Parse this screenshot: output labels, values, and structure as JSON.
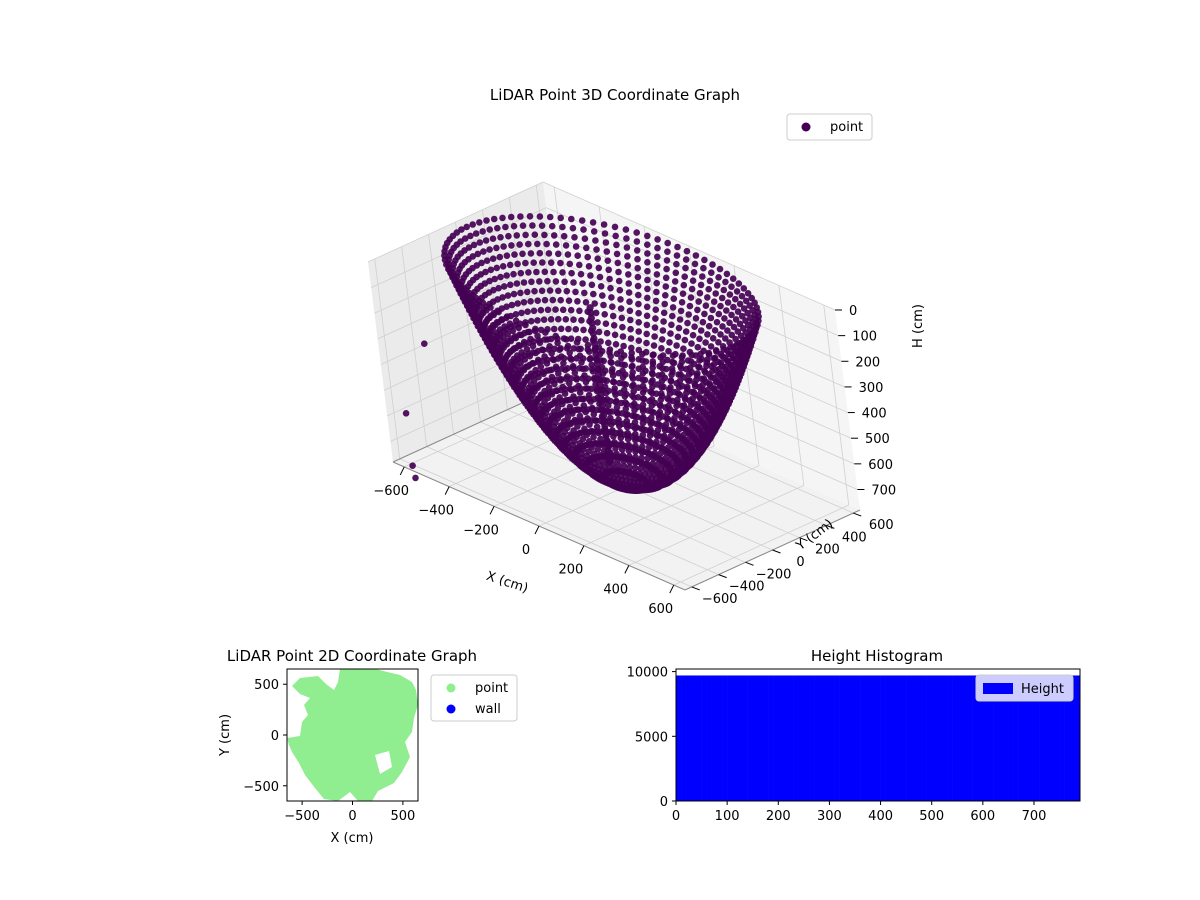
{
  "chart_data": [
    {
      "id": "lidar-3d",
      "type": "scatter",
      "title": "LiDAR Point 3D Coordinate Graph",
      "xlabel": "X (cm)",
      "ylabel": "Y (cm)",
      "zlabel": "H (cm)",
      "xticks": [
        "−600",
        "−400",
        "−200",
        "0",
        "200",
        "400",
        "600"
      ],
      "yticks": [
        "−600",
        "−400",
        "−200",
        "0",
        "200",
        "400",
        "600"
      ],
      "zticks": [
        "0",
        "100",
        "200",
        "300",
        "400",
        "500",
        "600",
        "700"
      ],
      "xlim": [
        -650,
        650
      ],
      "ylim": [
        -650,
        650
      ],
      "zlim": [
        0,
        780
      ],
      "z_inverted": true,
      "grid": true,
      "legend": {
        "position": "top-right",
        "entries": [
          {
            "label": "point",
            "color": "#440154"
          }
        ]
      },
      "series": [
        {
          "name": "point",
          "color": "#440154",
          "shape": "bowl-shaped scan arcs, approx. radius 600 cm, height 0–780 cm"
        }
      ]
    },
    {
      "id": "lidar-2d",
      "type": "scatter",
      "title": "LiDAR Point 2D Coordinate Graph",
      "xlabel": "X (cm)",
      "ylabel": "Y (cm)",
      "xticks": [
        "−500",
        "0",
        "500"
      ],
      "yticks": [
        "−500",
        "0",
        "500"
      ],
      "xlim": [
        -650,
        650
      ],
      "ylim": [
        -650,
        650
      ],
      "legend": {
        "position": "outside-right",
        "entries": [
          {
            "label": "point",
            "color": "#90ee90"
          },
          {
            "label": "wall",
            "color": "#0000ff"
          }
        ]
      }
    },
    {
      "id": "height-hist",
      "type": "bar",
      "title": "Height Histogram",
      "xticks": [
        "0",
        "100",
        "200",
        "300",
        "400",
        "500",
        "600",
        "700"
      ],
      "yticks": [
        "0",
        "5000",
        "10000"
      ],
      "xlim": [
        0,
        790
      ],
      "ylim": [
        0,
        10200
      ],
      "bins": {
        "start": 0,
        "end": 790,
        "count": 79,
        "value": 9700
      },
      "color": "#0000ff",
      "legend": {
        "position": "upper-right",
        "entries": [
          {
            "label": "Height",
            "color": "#0000ff"
          }
        ]
      }
    }
  ]
}
